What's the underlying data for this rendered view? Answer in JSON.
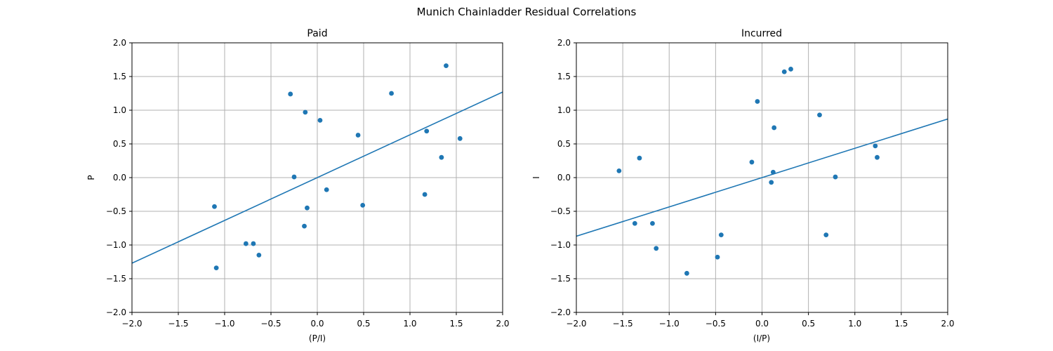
{
  "figure": {
    "suptitle": "Munich Chainladder Residual Correlations"
  },
  "colors": {
    "marker": "#1f77b4",
    "line": "#1f77b4",
    "grid": "#b0b0b0",
    "axes": "#000000"
  },
  "chart_data": [
    {
      "type": "scatter",
      "title": "Paid",
      "xlabel": "(P/I)",
      "ylabel": "P",
      "xlim": [
        -2.0,
        2.0
      ],
      "ylim": [
        -2.0,
        2.0
      ],
      "xticks": [
        "−2.0",
        "−1.5",
        "−1.0",
        "−0.5",
        "0.0",
        "0.5",
        "1.0",
        "1.5",
        "2.0"
      ],
      "yticks": [
        "−2.0",
        "−1.5",
        "−1.0",
        "−0.5",
        "0.0",
        "0.5",
        "1.0",
        "1.5",
        "2.0"
      ],
      "grid": true,
      "points": [
        {
          "x": -1.11,
          "y": -0.43
        },
        {
          "x": -1.09,
          "y": -1.34
        },
        {
          "x": -0.77,
          "y": -0.98
        },
        {
          "x": -0.69,
          "y": -0.98
        },
        {
          "x": -0.63,
          "y": -1.15
        },
        {
          "x": -0.29,
          "y": 1.24
        },
        {
          "x": -0.25,
          "y": 0.01
        },
        {
          "x": -0.14,
          "y": -0.72
        },
        {
          "x": -0.13,
          "y": 0.97
        },
        {
          "x": -0.11,
          "y": -0.45
        },
        {
          "x": 0.03,
          "y": 0.85
        },
        {
          "x": 0.1,
          "y": -0.18
        },
        {
          "x": 0.44,
          "y": 0.63
        },
        {
          "x": 0.49,
          "y": -0.41
        },
        {
          "x": 0.8,
          "y": 1.25
        },
        {
          "x": 1.16,
          "y": -0.25
        },
        {
          "x": 1.18,
          "y": 0.69
        },
        {
          "x": 1.34,
          "y": 0.3
        },
        {
          "x": 1.39,
          "y": 1.66
        },
        {
          "x": 1.54,
          "y": 0.58
        }
      ],
      "fit_line": {
        "slope": 0.635,
        "intercept": 0.0
      }
    },
    {
      "type": "scatter",
      "title": "Incurred",
      "xlabel": "(I/P)",
      "ylabel": "I",
      "xlim": [
        -2.0,
        2.0
      ],
      "ylim": [
        -2.0,
        2.0
      ],
      "xticks": [
        "−2.0",
        "−1.5",
        "−1.0",
        "−0.5",
        "0.0",
        "0.5",
        "1.0",
        "1.5",
        "2.0"
      ],
      "yticks": [
        "−2.0",
        "−1.5",
        "−1.0",
        "−0.5",
        "0.0",
        "0.5",
        "1.0",
        "1.5",
        "2.0"
      ],
      "grid": true,
      "points": [
        {
          "x": -1.54,
          "y": 0.1
        },
        {
          "x": -1.37,
          "y": -0.68
        },
        {
          "x": -1.32,
          "y": 0.29
        },
        {
          "x": -1.18,
          "y": -0.68
        },
        {
          "x": -1.14,
          "y": -1.05
        },
        {
          "x": -0.81,
          "y": -1.42
        },
        {
          "x": -0.48,
          "y": -1.18
        },
        {
          "x": -0.44,
          "y": -0.85
        },
        {
          "x": -0.11,
          "y": 0.23
        },
        {
          "x": -0.05,
          "y": 1.13
        },
        {
          "x": 0.1,
          "y": -0.07
        },
        {
          "x": 0.12,
          "y": 0.08
        },
        {
          "x": 0.13,
          "y": 0.74
        },
        {
          "x": 0.24,
          "y": 1.57
        },
        {
          "x": 0.31,
          "y": 1.61
        },
        {
          "x": 0.62,
          "y": 0.93
        },
        {
          "x": 0.69,
          "y": -0.85
        },
        {
          "x": 0.79,
          "y": 0.01
        },
        {
          "x": 1.22,
          "y": 0.47
        },
        {
          "x": 1.24,
          "y": 0.3
        }
      ],
      "fit_line": {
        "slope": 0.435,
        "intercept": 0.0
      }
    }
  ]
}
